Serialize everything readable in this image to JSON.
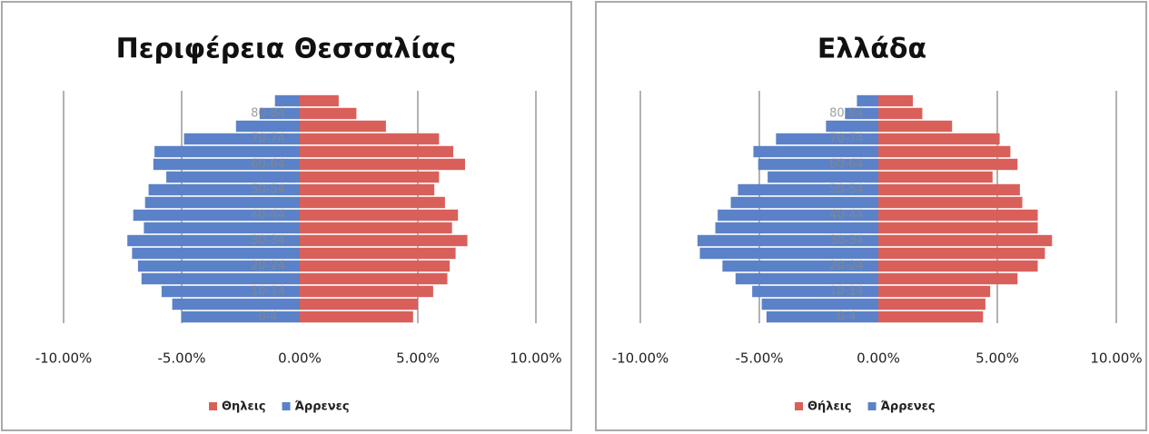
{
  "chart_data": [
    {
      "type": "pyramid",
      "title": "Περιφέρεια Θεσσαλίας",
      "categories": [
        "0-4",
        null,
        "10-14",
        null,
        "20-24",
        null,
        "30-34",
        null,
        "40-44",
        null,
        "50-54",
        null,
        "60-64",
        null,
        "70-74",
        null,
        "80-84",
        null
      ],
      "series": [
        {
          "name": "Θηλεις",
          "color": "#d9605a",
          "values": [
            4.8,
            5.0,
            5.65,
            6.25,
            6.35,
            6.6,
            7.1,
            6.45,
            6.7,
            6.15,
            5.7,
            5.9,
            7.0,
            6.5,
            5.9,
            3.65,
            2.4,
            1.65
          ]
        },
        {
          "name": "Άρρενες",
          "color": "#5b82c8",
          "values": [
            -5.0,
            -5.4,
            -5.85,
            -6.7,
            -6.85,
            -7.1,
            -7.3,
            -6.6,
            -7.05,
            -6.55,
            -6.4,
            -5.65,
            -6.2,
            -6.15,
            -4.9,
            -2.7,
            -1.7,
            -1.05
          ]
        }
      ],
      "xlim": [
        -10,
        10
      ],
      "xticks": [
        {
          "value": -10,
          "label": "-10.00%"
        },
        {
          "value": -5,
          "label": "-5.00%"
        },
        {
          "value": 0,
          "label": "0.00%"
        },
        {
          "value": 5,
          "label": "5.00%"
        },
        {
          "value": 10,
          "label": "10.00%"
        }
      ],
      "grid": true,
      "legend": "bottom"
    },
    {
      "type": "pyramid",
      "title": "Ελλάδα",
      "categories": [
        "0-4",
        null,
        "10-14",
        null,
        "20-24",
        null,
        "30-34",
        null,
        "40-44",
        null,
        "50-54",
        null,
        "60-64",
        null,
        "70-74",
        null,
        "80-84",
        null
      ],
      "series": [
        {
          "name": "Θήλεις",
          "color": "#d9605a",
          "values": [
            4.4,
            4.5,
            4.7,
            5.85,
            6.7,
            7.0,
            7.3,
            6.7,
            6.7,
            6.05,
            5.95,
            4.8,
            5.85,
            5.55,
            5.1,
            3.1,
            1.85,
            1.45
          ]
        },
        {
          "name": "Άρρενες",
          "color": "#5b82c8",
          "values": [
            -4.7,
            -4.9,
            -5.3,
            -6.0,
            -6.55,
            -7.5,
            -7.6,
            -6.85,
            -6.75,
            -6.2,
            -5.9,
            -4.65,
            -5.05,
            -5.25,
            -4.3,
            -2.2,
            -1.4,
            -0.9
          ]
        }
      ],
      "xlim": [
        -10,
        10
      ],
      "xticks": [
        {
          "value": -10,
          "label": "-10.00%"
        },
        {
          "value": -5,
          "label": "-5.00%"
        },
        {
          "value": 0,
          "label": "0.00%"
        },
        {
          "value": 5,
          "label": "5.00%"
        },
        {
          "value": 10,
          "label": "10.00%"
        }
      ],
      "grid": true,
      "legend": "bottom"
    }
  ]
}
